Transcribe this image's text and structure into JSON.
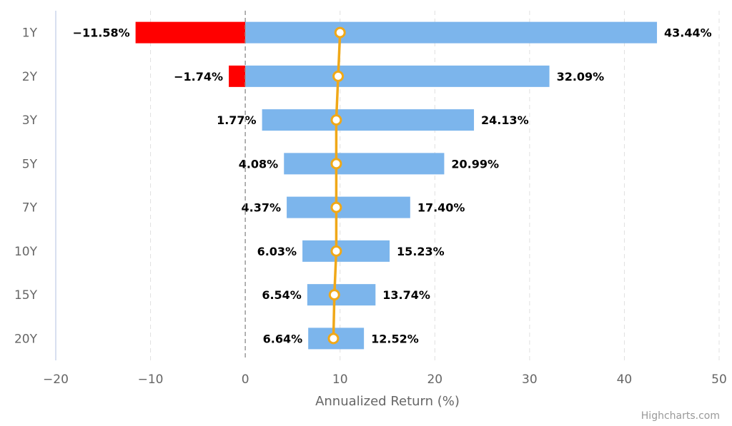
{
  "chart_data": {
    "type": "bar",
    "orientation": "horizontal",
    "categories": [
      "1Y",
      "2Y",
      "3Y",
      "5Y",
      "7Y",
      "10Y",
      "15Y",
      "20Y"
    ],
    "ranges": {
      "low": [
        -11.58,
        -1.74,
        1.77,
        4.08,
        4.37,
        6.03,
        6.54,
        6.64
      ],
      "high": [
        43.44,
        32.09,
        24.13,
        20.99,
        17.4,
        15.23,
        13.74,
        12.52
      ]
    },
    "low_labels": [
      "−11.58%",
      "−1.74%",
      "1.77%",
      "4.08%",
      "4.37%",
      "6.03%",
      "6.54%",
      "6.64%"
    ],
    "high_labels": [
      "43.44%",
      "32.09%",
      "24.13%",
      "20.99%",
      "17.40%",
      "15.23%",
      "13.74%",
      "12.52%"
    ],
    "line_values": [
      10.0,
      9.8,
      9.6,
      9.6,
      9.6,
      9.6,
      9.4,
      9.3
    ],
    "xlim": [
      -20,
      50
    ],
    "xticks": [
      -20,
      -10,
      0,
      10,
      20,
      30,
      40,
      50
    ],
    "xtick_labels": [
      "−20",
      "−10",
      "0",
      "10",
      "20",
      "30",
      "40",
      "50"
    ],
    "xlabel": "Annualized Return (%)",
    "ylabel": "",
    "grid": true,
    "colors": {
      "positive": "#7cb5ec",
      "negative": "#ff0000",
      "line": "#f0a818",
      "marker_fill": "#ffffff",
      "grid": "#e0e0e0",
      "axis_line": "#ccd6eb",
      "zero_line": "#999999"
    }
  },
  "credits": "Highcharts.com"
}
